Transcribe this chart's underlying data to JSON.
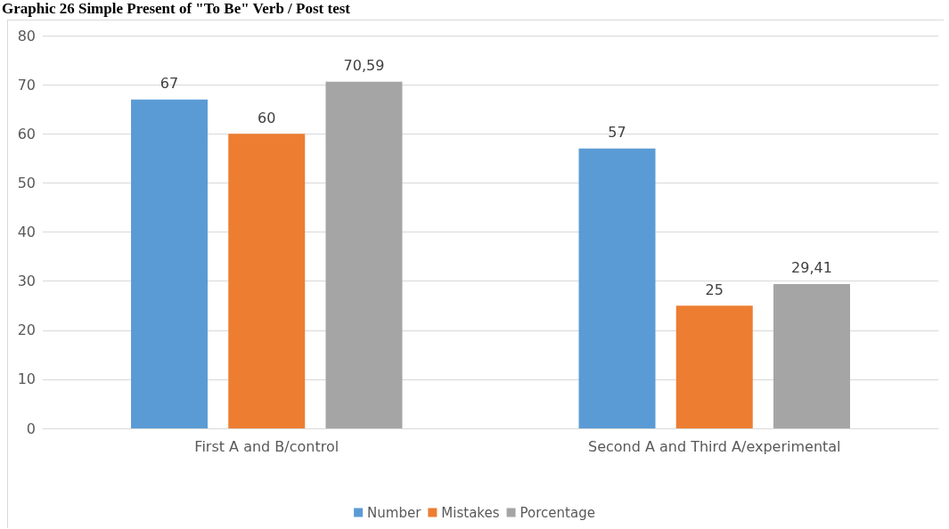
{
  "chart_data": {
    "type": "bar",
    "title": "Graphic 26 Simple Present of \"To Be\" Verb / Post test",
    "categories": [
      "First A and B/control",
      "Second A and Third A/experimental"
    ],
    "series": [
      {
        "name": "Number",
        "color": "#5b9bd5",
        "values": [
          67,
          57
        ],
        "value_labels": [
          "67",
          "57"
        ]
      },
      {
        "name": "Mistakes",
        "color": "#ed7d31",
        "values": [
          60,
          25
        ],
        "value_labels": [
          "60",
          "25"
        ]
      },
      {
        "name": "Porcentage",
        "color": "#a5a5a5",
        "values": [
          70.59,
          29.41
        ],
        "value_labels": [
          "70,59",
          "29,41"
        ]
      }
    ],
    "ylim": [
      0,
      80
    ],
    "yticks": [
      0,
      10,
      20,
      30,
      40,
      50,
      60,
      70,
      80
    ],
    "grid": "y",
    "legend": "bottom"
  }
}
